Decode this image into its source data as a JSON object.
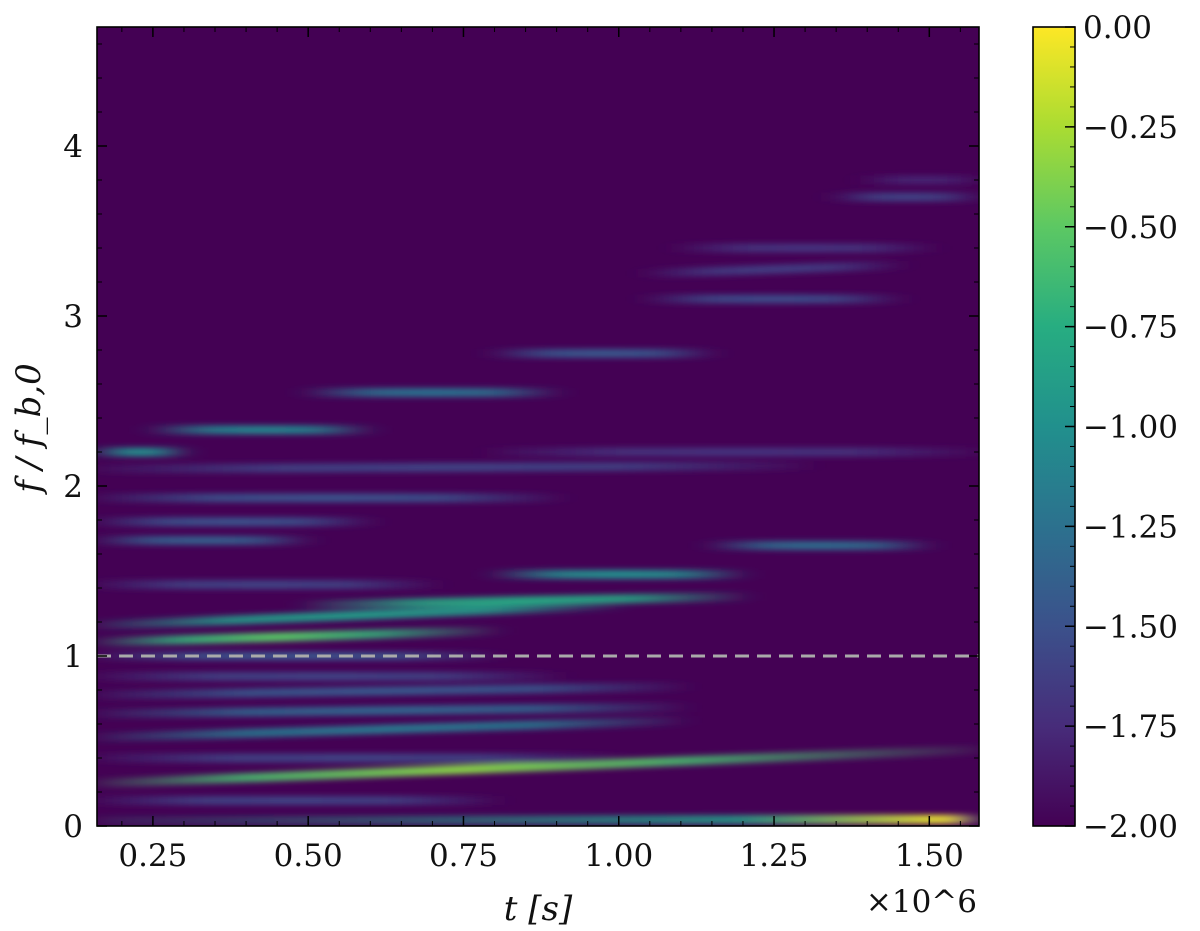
{
  "chart_data": {
    "type": "heatmap",
    "title": "",
    "xlabel": "t [s]",
    "ylabel": "f / f_b,0",
    "x_multiplier": "×10^6",
    "xlim": [
      0.16,
      1.58
    ],
    "ylim": [
      0,
      4.7
    ],
    "x_ticks": [
      0.25,
      0.5,
      0.75,
      1.0,
      1.25,
      1.5
    ],
    "x_tick_labels": [
      "0.25",
      "0.50",
      "0.75",
      "1.00",
      "1.25",
      "1.50"
    ],
    "y_ticks": [
      0,
      1,
      2,
      3,
      4
    ],
    "y_tick_labels": [
      "0",
      "1",
      "2",
      "3",
      "4"
    ],
    "reference_line": {
      "y": 1.0,
      "style": "dashed",
      "color": "#aaaaaa"
    },
    "colormap": "viridis",
    "color_range": [
      -2.0,
      0.0
    ],
    "colorbar_ticks": [
      0.0,
      -0.25,
      -0.5,
      -0.75,
      -1.0,
      -1.25,
      -1.5,
      -1.75,
      -2.0
    ],
    "colorbar_tick_labels": [
      "0.00",
      "−0.25",
      "−0.50",
      "−0.75",
      "−1.00",
      "−1.25",
      "−1.50",
      "−1.75",
      "−2.00"
    ],
    "grid": false,
    "bands": [
      {
        "t_start": 0.16,
        "t_end": 1.58,
        "f": 0.03,
        "f_end": 0.04,
        "intensity": -0.9,
        "peak_t": 1.55,
        "peak_intensity": 0.0
      },
      {
        "t_start": 0.16,
        "t_end": 1.58,
        "f": 0.25,
        "f_end": 0.45,
        "intensity": -0.6,
        "peak_t": 0.75,
        "peak_intensity": -0.35
      },
      {
        "t_start": 0.16,
        "t_end": 0.8,
        "f": 0.15,
        "f_end": 0.15,
        "intensity": -1.6
      },
      {
        "t_start": 0.16,
        "t_end": 1.0,
        "f": 0.4,
        "f_end": 0.4,
        "intensity": -1.6
      },
      {
        "t_start": 0.16,
        "t_end": 1.1,
        "f": 0.52,
        "f_end": 0.62,
        "intensity": -1.2
      },
      {
        "t_start": 0.16,
        "t_end": 1.1,
        "f": 0.66,
        "f_end": 0.7,
        "intensity": -1.35
      },
      {
        "t_start": 0.16,
        "t_end": 1.1,
        "f": 0.77,
        "f_end": 0.82,
        "intensity": -1.45
      },
      {
        "t_start": 0.16,
        "t_end": 0.9,
        "f": 0.88,
        "f_end": 0.88,
        "intensity": -1.6
      },
      {
        "t_start": 0.16,
        "t_end": 0.8,
        "f": 1.0,
        "f_end": 1.0,
        "intensity": -1.5
      },
      {
        "t_start": 0.16,
        "t_end": 0.8,
        "f": 1.08,
        "f_end": 1.15,
        "intensity": -0.7,
        "peak_t": 0.45,
        "peak_intensity": -0.5
      },
      {
        "t_start": 0.16,
        "t_end": 1.0,
        "f": 1.18,
        "f_end": 1.3,
        "intensity": -0.9
      },
      {
        "t_start": 0.5,
        "t_end": 1.2,
        "f": 1.3,
        "f_end": 1.35,
        "intensity": -0.8
      },
      {
        "t_start": 0.16,
        "t_end": 0.7,
        "f": 1.42,
        "f_end": 1.42,
        "intensity": -1.6
      },
      {
        "t_start": 0.8,
        "t_end": 1.2,
        "f": 1.48,
        "f_end": 1.48,
        "intensity": -1.0
      },
      {
        "t_start": 0.16,
        "t_end": 0.5,
        "f": 1.68,
        "f_end": 1.68,
        "intensity": -1.4
      },
      {
        "t_start": 1.15,
        "t_end": 1.5,
        "f": 1.65,
        "f_end": 1.65,
        "intensity": -1.3
      },
      {
        "t_start": 0.16,
        "t_end": 0.6,
        "f": 1.79,
        "f_end": 1.79,
        "intensity": -1.5
      },
      {
        "t_start": 0.16,
        "t_end": 0.9,
        "f": 1.93,
        "f_end": 1.93,
        "intensity": -1.5
      },
      {
        "t_start": 0.16,
        "t_end": 1.3,
        "f": 2.1,
        "f_end": 2.12,
        "intensity": -1.6
      },
      {
        "t_start": 0.16,
        "t_end": 0.3,
        "f": 2.2,
        "f_end": 2.2,
        "intensity": -1.0
      },
      {
        "t_start": 0.8,
        "t_end": 1.58,
        "f": 2.2,
        "f_end": 2.2,
        "intensity": -1.7
      },
      {
        "t_start": 0.25,
        "t_end": 0.6,
        "f": 2.33,
        "f_end": 2.33,
        "intensity": -1.1
      },
      {
        "t_start": 0.5,
        "t_end": 0.9,
        "f": 2.55,
        "f_end": 2.55,
        "intensity": -1.25
      },
      {
        "t_start": 0.8,
        "t_end": 1.15,
        "f": 2.78,
        "f_end": 2.78,
        "intensity": -1.45
      },
      {
        "t_start": 1.05,
        "t_end": 1.45,
        "f": 3.1,
        "f_end": 3.1,
        "intensity": -1.55
      },
      {
        "t_start": 1.05,
        "t_end": 1.45,
        "f": 3.25,
        "f_end": 3.3,
        "intensity": -1.65
      },
      {
        "t_start": 1.1,
        "t_end": 1.5,
        "f": 3.4,
        "f_end": 3.4,
        "intensity": -1.7
      },
      {
        "t_start": 1.35,
        "t_end": 1.58,
        "f": 3.7,
        "f_end": 3.7,
        "intensity": -1.6
      },
      {
        "t_start": 1.4,
        "t_end": 1.58,
        "f": 3.8,
        "f_end": 3.8,
        "intensity": -1.8
      }
    ]
  }
}
